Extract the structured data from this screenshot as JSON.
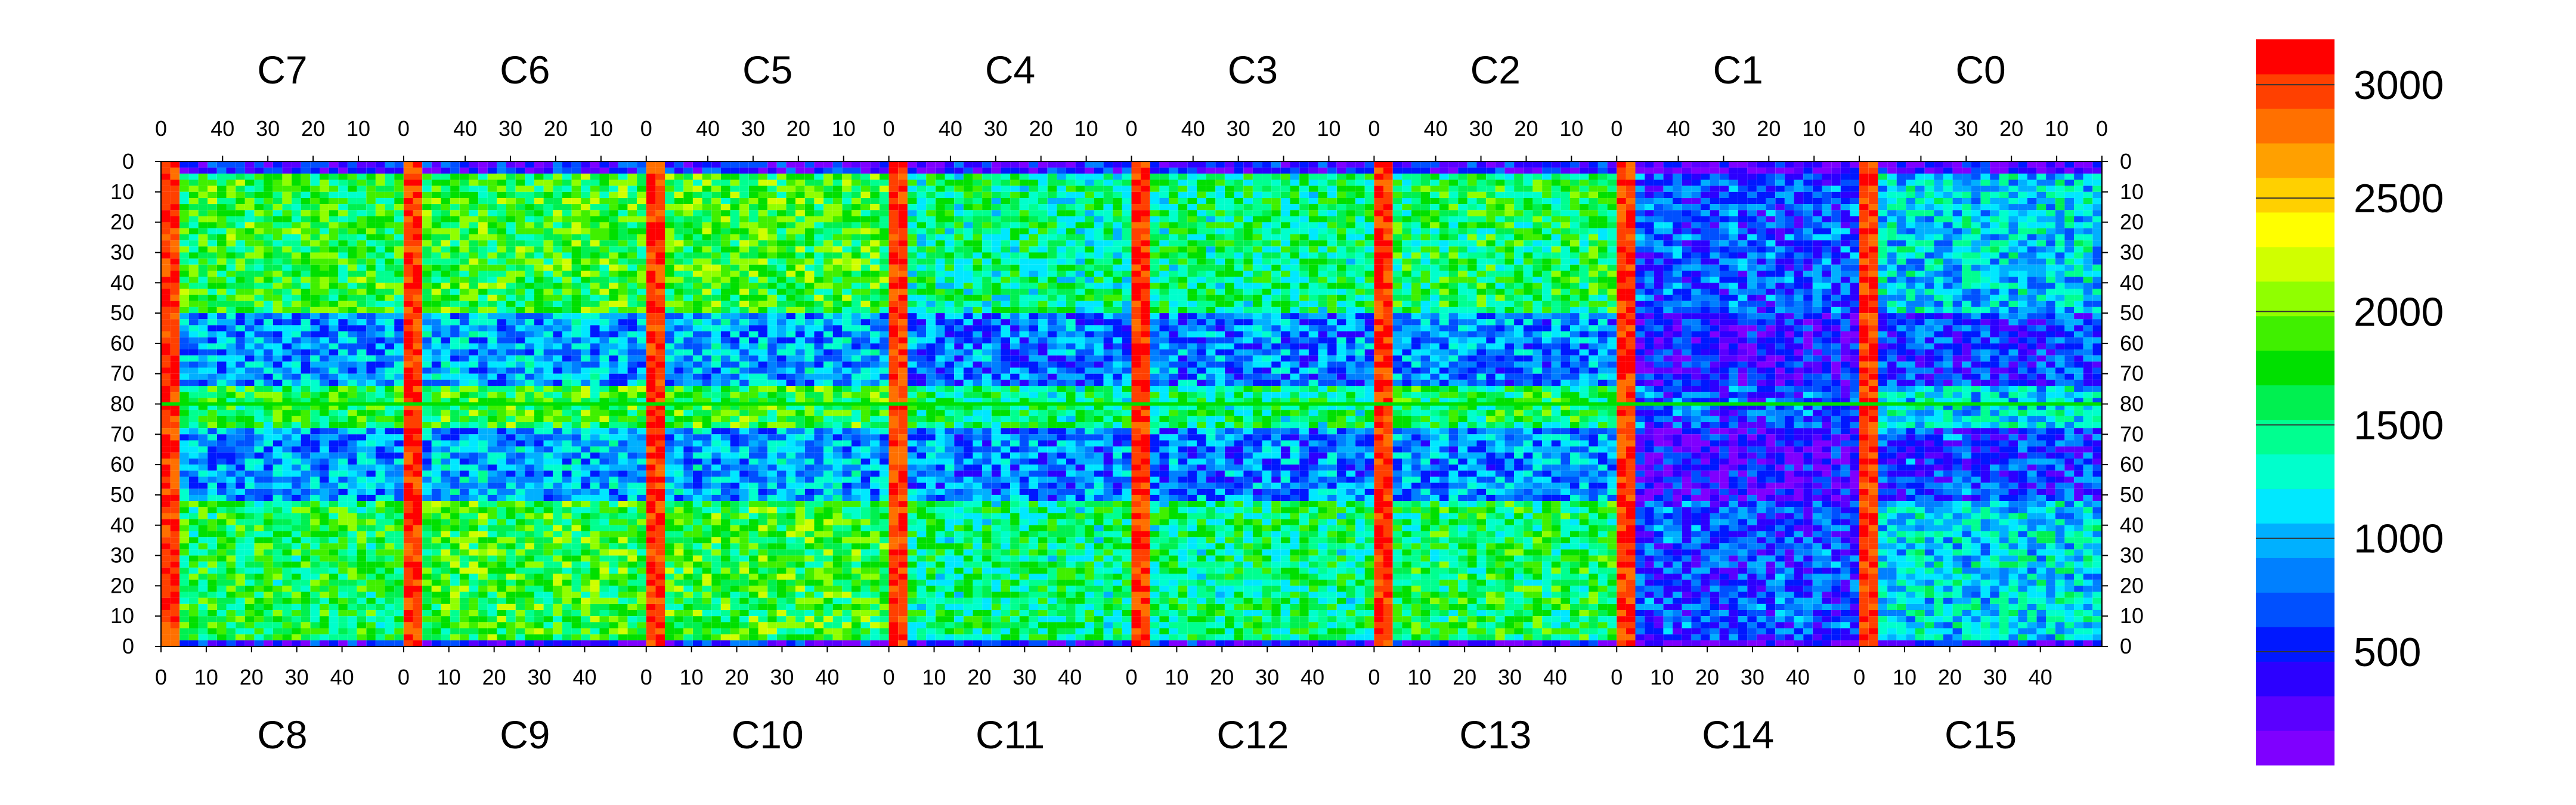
{
  "chart_data": {
    "type": "heatmap",
    "title": "",
    "xlabel": "",
    "ylabel": "",
    "top_chip_labels": [
      "C7",
      "C6",
      "C5",
      "C4",
      "C3",
      "C2",
      "C1",
      "C0"
    ],
    "bottom_chip_labels": [
      "C8",
      "C9",
      "C10",
      "C11",
      "C12",
      "C13",
      "C14",
      "C15"
    ],
    "top_axis_ticks": [
      40,
      30,
      20,
      10,
      0
    ],
    "bottom_axis_ticks": [
      0,
      10,
      20,
      30,
      40
    ],
    "y_ticks_upper": [
      0,
      10,
      20,
      30,
      40,
      50,
      60,
      70,
      80
    ],
    "y_ticks_lower": [
      70,
      60,
      50,
      40,
      30,
      20,
      10,
      0
    ],
    "chip_columns": 52,
    "half_rows": 80,
    "colorbar": {
      "ticks": [
        500,
        1000,
        1500,
        2000,
        2500,
        3000
      ],
      "range": [
        0,
        3200
      ],
      "colors": [
        "#7f00ff",
        "#5a00ff",
        "#2c00ff",
        "#0018ff",
        "#0050ff",
        "#0080ff",
        "#00b0ff",
        "#00e8ff",
        "#00ffcc",
        "#00ff90",
        "#00f050",
        "#00e000",
        "#40f000",
        "#90ff00",
        "#d0ff00",
        "#ffff00",
        "#ffd000",
        "#ffa000",
        "#ff7000",
        "#ff4000",
        "#ff0000"
      ]
    },
    "regions": {
      "C7": 1700,
      "C6": 1750,
      "C5": 1750,
      "C4": 1450,
      "C3": 1500,
      "C2": 1600,
      "C1": 700,
      "C0": 1100,
      "C8": 1650,
      "C9": 1750,
      "C10": 1750,
      "C11": 1500,
      "C12": 1500,
      "C13": 1600,
      "C14": 650,
      "C15": 1150
    }
  }
}
